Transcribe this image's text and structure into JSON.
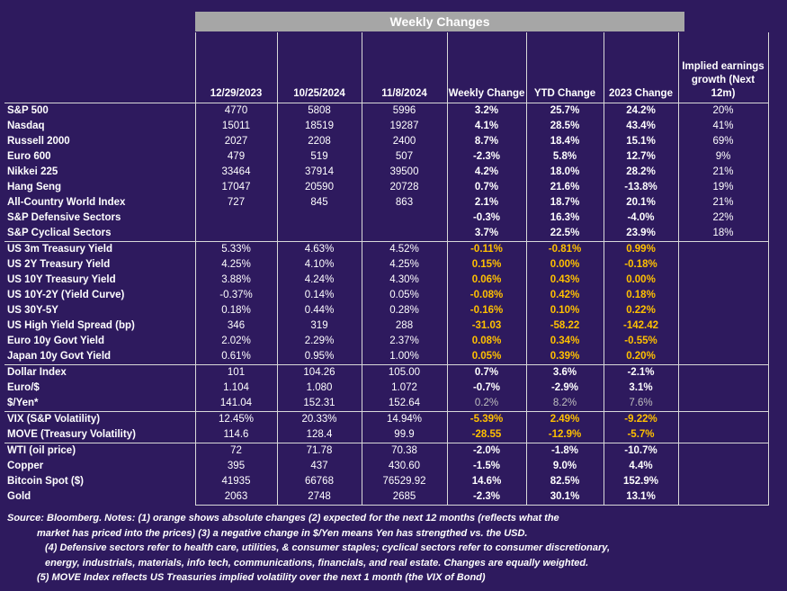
{
  "title": "Weekly Changes",
  "columns": [
    "12/29/2023",
    "10/25/2024",
    "11/8/2024",
    "Weekly Change",
    "YTD Change",
    "2023 Change",
    "Implied earnings growth (Next 12m)"
  ],
  "rows": [
    {
      "label": "S&P 500",
      "v": [
        "4770",
        "5808",
        "5996",
        "3.2%",
        "25.7%",
        "24.2%",
        "20%"
      ],
      "s": [
        "",
        "",
        "",
        "b",
        "b",
        "b",
        ""
      ]
    },
    {
      "label": "Nasdaq",
      "v": [
        "15011",
        "18519",
        "19287",
        "4.1%",
        "28.5%",
        "43.4%",
        "41%"
      ],
      "s": [
        "",
        "",
        "",
        "b",
        "b",
        "b",
        ""
      ]
    },
    {
      "label": "Russell 2000",
      "v": [
        "2027",
        "2208",
        "2400",
        "8.7%",
        "18.4%",
        "15.1%",
        "69%"
      ],
      "s": [
        "",
        "",
        "",
        "b",
        "b",
        "b",
        ""
      ]
    },
    {
      "label": "Euro 600",
      "v": [
        "479",
        "519",
        "507",
        "-2.3%",
        "5.8%",
        "12.7%",
        "9%"
      ],
      "s": [
        "",
        "",
        "",
        "b",
        "b",
        "b",
        ""
      ]
    },
    {
      "label": "Nikkei 225",
      "v": [
        "33464",
        "37914",
        "39500",
        "4.2%",
        "18.0%",
        "28.2%",
        "21%"
      ],
      "s": [
        "",
        "",
        "",
        "b",
        "b",
        "b",
        ""
      ]
    },
    {
      "label": "Hang Seng",
      "v": [
        "17047",
        "20590",
        "20728",
        "0.7%",
        "21.6%",
        "-13.8%",
        "19%"
      ],
      "s": [
        "",
        "",
        "",
        "b",
        "b",
        "b",
        ""
      ]
    },
    {
      "label": "All-Country World Index",
      "v": [
        "727",
        "845",
        "863",
        "2.1%",
        "18.7%",
        "20.1%",
        "21%"
      ],
      "s": [
        "",
        "",
        "",
        "b",
        "b",
        "b",
        ""
      ]
    },
    {
      "label": "S&P Defensive Sectors",
      "v": [
        "",
        "",
        "",
        "-0.3%",
        "16.3%",
        "-4.0%",
        "22%"
      ],
      "s": [
        "",
        "",
        "",
        "b",
        "b",
        "b",
        ""
      ]
    },
    {
      "label": "S&P Cyclical Sectors",
      "v": [
        "",
        "",
        "",
        "3.7%",
        "22.5%",
        "23.9%",
        "18%"
      ],
      "s": [
        "",
        "",
        "",
        "b",
        "b",
        "b",
        ""
      ]
    },
    {
      "label": "US 3m Treasury Yield",
      "v": [
        "5.33%",
        "4.63%",
        "4.52%",
        "-0.11%",
        "-0.81%",
        "0.99%",
        ""
      ],
      "s": [
        "",
        "",
        "",
        "o",
        "o",
        "o",
        ""
      ]
    },
    {
      "label": "US 2Y Treasury Yield",
      "v": [
        "4.25%",
        "4.10%",
        "4.25%",
        "0.15%",
        "0.00%",
        "-0.18%",
        ""
      ],
      "s": [
        "",
        "",
        "",
        "o",
        "o",
        "o",
        ""
      ]
    },
    {
      "label": "US 10Y Treasury Yield",
      "v": [
        "3.88%",
        "4.24%",
        "4.30%",
        "0.06%",
        "0.43%",
        "0.00%",
        ""
      ],
      "s": [
        "",
        "",
        "",
        "o",
        "o",
        "o",
        ""
      ]
    },
    {
      "label": "US 10Y-2Y (Yield Curve)",
      "v": [
        "-0.37%",
        "0.14%",
        "0.05%",
        "-0.08%",
        "0.42%",
        "0.18%",
        ""
      ],
      "s": [
        "",
        "",
        "",
        "o",
        "o",
        "o",
        ""
      ]
    },
    {
      "label": "US 30Y-5Y",
      "v": [
        "0.18%",
        "0.44%",
        "0.28%",
        "-0.16%",
        "0.10%",
        "0.22%",
        ""
      ],
      "s": [
        "",
        "",
        "",
        "o",
        "o",
        "o",
        ""
      ]
    },
    {
      "label": "US High Yield Spread (bp)",
      "v": [
        "346",
        "319",
        "288",
        "-31.03",
        "-58.22",
        "-142.42",
        ""
      ],
      "s": [
        "",
        "",
        "",
        "o",
        "o",
        "o",
        ""
      ]
    },
    {
      "label": "Euro 10y Govt Yield",
      "v": [
        "2.02%",
        "2.29%",
        "2.37%",
        "0.08%",
        "0.34%",
        "-0.55%",
        ""
      ],
      "s": [
        "",
        "",
        "",
        "o",
        "o",
        "o",
        ""
      ]
    },
    {
      "label": "Japan 10y Govt Yield",
      "v": [
        "0.61%",
        "0.95%",
        "1.00%",
        "0.05%",
        "0.39%",
        "0.20%",
        ""
      ],
      "s": [
        "",
        "",
        "",
        "o",
        "o",
        "o",
        ""
      ]
    },
    {
      "label": "Dollar Index",
      "v": [
        "101",
        "104.26",
        "105.00",
        "0.7%",
        "3.6%",
        "-2.1%",
        ""
      ],
      "s": [
        "",
        "",
        "",
        "b",
        "b",
        "b",
        ""
      ]
    },
    {
      "label": "Euro/$",
      "v": [
        "1.104",
        "1.080",
        "1.072",
        "-0.7%",
        "-2.9%",
        "3.1%",
        ""
      ],
      "s": [
        "",
        "",
        "",
        "b",
        "b",
        "b",
        ""
      ]
    },
    {
      "label": "$/Yen*",
      "v": [
        "141.04",
        "152.31",
        "152.64",
        "0.2%",
        "8.2%",
        "7.6%",
        ""
      ],
      "s": [
        "",
        "",
        "",
        "g",
        "g",
        "g",
        ""
      ]
    },
    {
      "label": "VIX (S&P Volatility)",
      "v": [
        "12.45%",
        "20.33%",
        "14.94%",
        "-5.39%",
        "2.49%",
        "-9.22%",
        ""
      ],
      "s": [
        "",
        "",
        "",
        "o",
        "o",
        "o",
        ""
      ]
    },
    {
      "label": "MOVE (Treasury Volatility)",
      "v": [
        "114.6",
        "128.4",
        "99.9",
        "-28.55",
        "-12.9%",
        "-5.7%",
        ""
      ],
      "s": [
        "",
        "",
        "",
        "o",
        "o",
        "o",
        ""
      ]
    },
    {
      "label": "WTI (oil price)",
      "v": [
        "72",
        "71.78",
        "70.38",
        "-2.0%",
        "-1.8%",
        "-10.7%",
        ""
      ],
      "s": [
        "",
        "",
        "",
        "b",
        "b",
        "b",
        ""
      ]
    },
    {
      "label": "Copper",
      "v": [
        "395",
        "437",
        "430.60",
        "-1.5%",
        "9.0%",
        "4.4%",
        ""
      ],
      "s": [
        "",
        "",
        "",
        "b",
        "b",
        "b",
        ""
      ]
    },
    {
      "label": "Bitcoin Spot ($)",
      "v": [
        "41935",
        "66768",
        "76529.92",
        "14.6%",
        "82.5%",
        "152.9%",
        ""
      ],
      "s": [
        "",
        "",
        "",
        "b",
        "b",
        "b",
        ""
      ]
    },
    {
      "label": "Gold",
      "v": [
        "2063",
        "2748",
        "2685",
        "-2.3%",
        "30.1%",
        "13.1%",
        ""
      ],
      "s": [
        "",
        "",
        "",
        "b",
        "b",
        "b",
        ""
      ]
    }
  ],
  "separators_before": [
    9,
    17,
    20,
    22
  ],
  "footnote": {
    "line1": "Source: Bloomberg. Notes: (1) orange shows absolute changes (2) expected for the next 12 months (reflects what the",
    "line2": "market has priced into the prices) (3) a negative change in $/Yen means Yen has strengthed vs. the USD.",
    "line3": "(4) Defensive sectors refer to health care, utilities, & consumer staples; cyclical sectors refer to consumer discretionary,",
    "line4": "energy, industrials, materials, info tech, communications, financials, and real estate. Changes are equally weighted.",
    "line5": "(5) MOVE Index reflects US Treasuries implied volatility over the next 1 month (the VIX of Bond)"
  },
  "colors": {
    "background": "#2e1a5e",
    "banner": "#a6a6a6",
    "orange": "#ffc000",
    "grid": "#d9d9d9"
  }
}
